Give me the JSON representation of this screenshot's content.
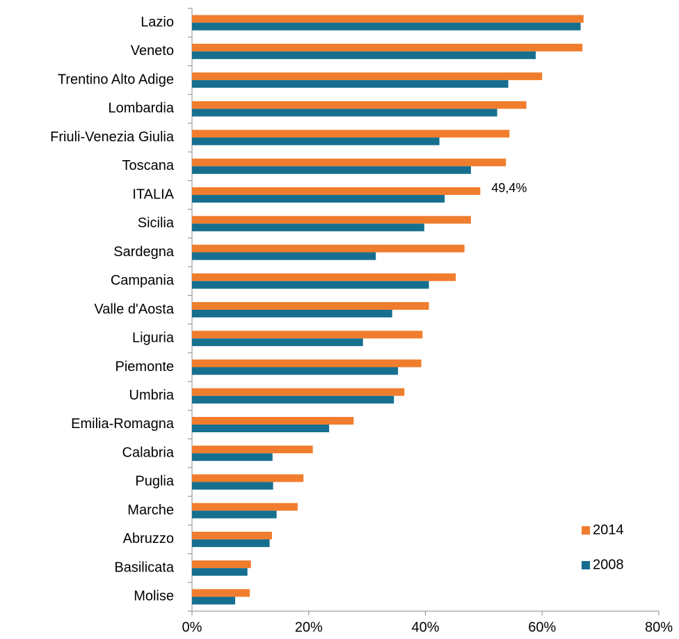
{
  "chart_data": {
    "type": "hbar",
    "categories": [
      "Lazio",
      "Veneto",
      "Trentino Alto Adige",
      "Lombardia",
      "Friuli-Venezia Giulia",
      "Toscana",
      "ITALIA",
      "Sicilia",
      "Sardegna",
      "Campania",
      "Valle d'Aosta",
      "Liguria",
      "Piemonte",
      "Umbria",
      "Emilia-Romagna",
      "Calabria",
      "Puglia",
      "Marche",
      "Abruzzo",
      "Basilicata",
      "Molise"
    ],
    "series": [
      {
        "name": "2014",
        "color": "#f07d2d",
        "values": [
          67.1,
          66.9,
          60.0,
          57.3,
          54.4,
          53.8,
          49.4,
          47.8,
          46.7,
          45.2,
          40.6,
          39.5,
          39.3,
          36.4,
          27.7,
          20.7,
          19.1,
          18.1,
          13.7,
          10.1,
          9.9
        ],
        "value_labels": [
          null,
          null,
          null,
          null,
          null,
          null,
          "49,4%",
          null,
          null,
          null,
          null,
          null,
          null,
          null,
          null,
          null,
          null,
          null,
          null,
          null,
          null
        ]
      },
      {
        "name": "2008",
        "color": "#176f8f",
        "values": [
          66.6,
          58.9,
          54.2,
          52.3,
          42.4,
          47.8,
          43.3,
          39.8,
          31.5,
          40.6,
          34.3,
          29.3,
          35.3,
          34.6,
          23.5,
          13.8,
          13.9,
          14.5,
          13.3,
          9.5,
          7.4
        ]
      }
    ],
    "xlim": [
      0,
      80
    ],
    "xticks": [
      {
        "value": 0,
        "label": "0%"
      },
      {
        "value": 20,
        "label": "20%"
      },
      {
        "value": 40,
        "label": "40%"
      },
      {
        "value": 60,
        "label": "60%"
      },
      {
        "value": 80,
        "label": "80%"
      }
    ],
    "legend": "bottom-right"
  }
}
